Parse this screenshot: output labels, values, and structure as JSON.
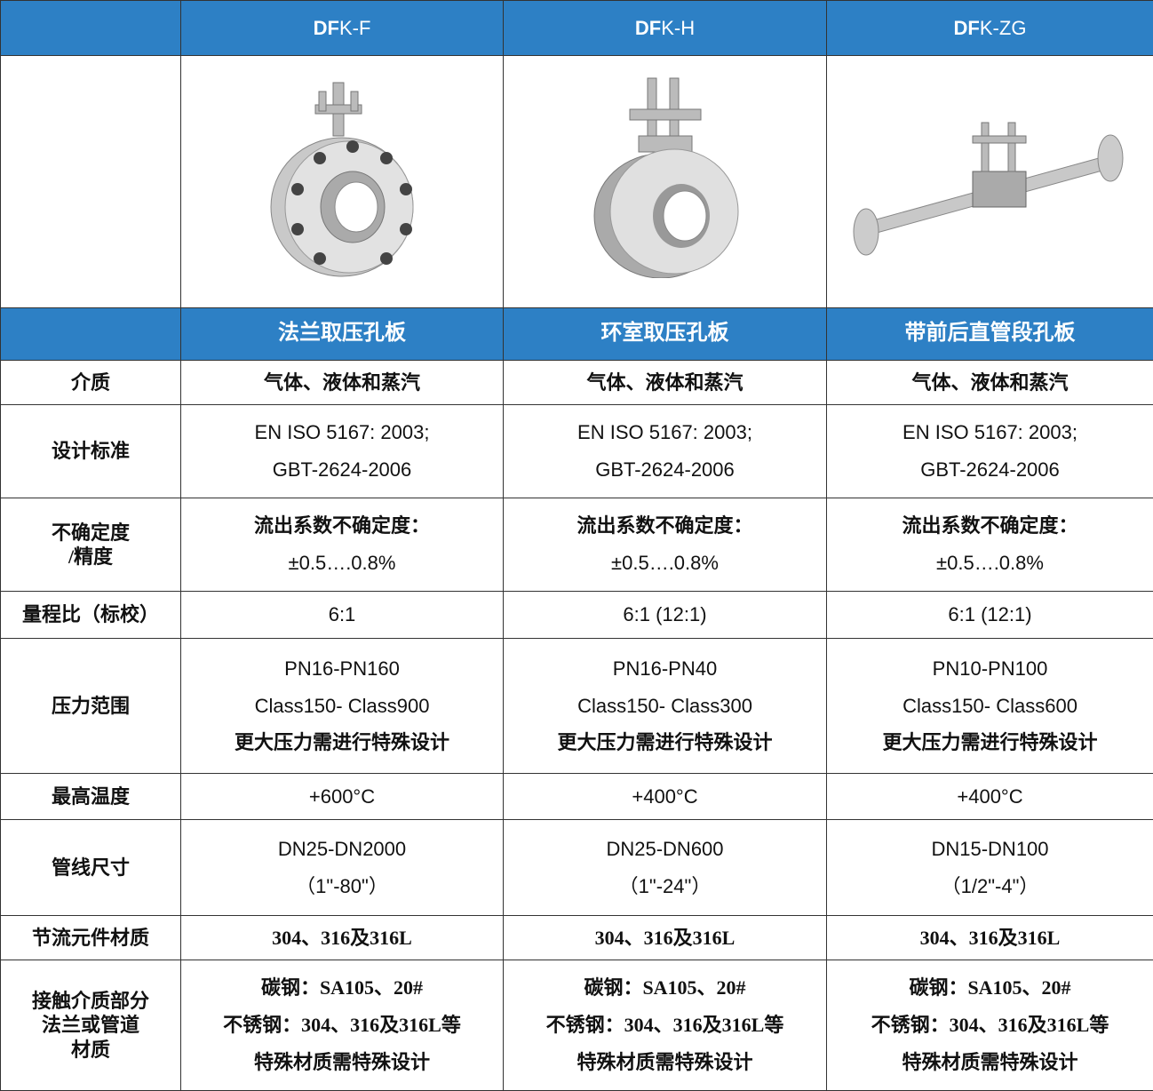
{
  "header": {
    "columns": [
      {
        "bold": "DF",
        "rest": "K-F"
      },
      {
        "bold": "DF",
        "rest": "K-H"
      },
      {
        "bold": "DF",
        "rest": "K-ZG"
      }
    ]
  },
  "subheader": [
    "法兰取压孔板",
    "环室取压孔板",
    "带前后直管段孔板"
  ],
  "rows": [
    {
      "label": [
        "介质"
      ],
      "cells": [
        [
          "气体、液体和蒸汽"
        ],
        [
          "气体、液体和蒸汽"
        ],
        [
          "气体、液体和蒸汽"
        ]
      ]
    },
    {
      "label": [
        "设计标准"
      ],
      "cells": [
        [
          "EN ISO 5167: 2003;",
          "GBT-2624-2006"
        ],
        [
          "EN ISO 5167: 2003;",
          "GBT-2624-2006"
        ],
        [
          "EN ISO 5167: 2003;",
          "GBT-2624-2006"
        ]
      ]
    },
    {
      "label": [
        "不确定度",
        "/精度"
      ],
      "cells": [
        [
          "流出系数不确定度：",
          "±0.5….0.8%"
        ],
        [
          "流出系数不确定度：",
          "±0.5….0.8%"
        ],
        [
          "流出系数不确定度：",
          "±0.5….0.8%"
        ]
      ]
    },
    {
      "label": [
        "量程比（标校）"
      ],
      "cells": [
        [
          "6:1"
        ],
        [
          "6:1 (12:1)"
        ],
        [
          "6:1 (12:1)"
        ]
      ]
    },
    {
      "label": [
        "压力范围"
      ],
      "cells": [
        [
          "PN16-PN160",
          "Class150- Class900",
          "更大压力需进行特殊设计"
        ],
        [
          "PN16-PN40",
          "Class150- Class300",
          "更大压力需进行特殊设计"
        ],
        [
          "PN10-PN100",
          "Class150- Class600",
          "更大压力需进行特殊设计"
        ]
      ]
    },
    {
      "label": [
        "最高温度"
      ],
      "cells": [
        [
          "+600°C"
        ],
        [
          "+400°C"
        ],
        [
          "+400°C"
        ]
      ]
    },
    {
      "label": [
        "管线尺寸"
      ],
      "cells": [
        [
          "DN25-DN2000",
          "（1\"-80\"）"
        ],
        [
          "DN25-DN600",
          "（1\"-24\"）"
        ],
        [
          "DN15-DN100",
          "（1/2\"-4\"）"
        ]
      ]
    },
    {
      "label": [
        "节流元件材质"
      ],
      "cells": [
        [
          "304、316及316L"
        ],
        [
          "304、316及316L"
        ],
        [
          "304、316及316L"
        ]
      ]
    },
    {
      "label": [
        "接触介质部分",
        "法兰或管道",
        "材质"
      ],
      "cells": [
        [
          "碳钢：SA105、20#",
          "不锈钢：304、316及316L等",
          "特殊材质需特殊设计"
        ],
        [
          "碳钢：SA105、20#",
          "不锈钢：304、316及316L等",
          "特殊材质需特殊设计"
        ],
        [
          "碳钢：SA105、20#",
          "不锈钢：304、316及316L等",
          "特殊材质需特殊设计"
        ]
      ]
    }
  ]
}
